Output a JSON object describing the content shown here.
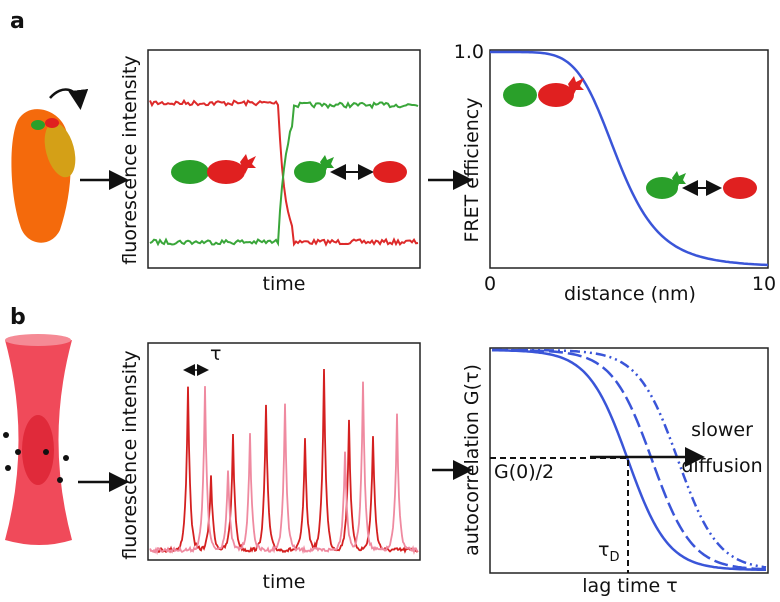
{
  "panel_a": {
    "label": "a",
    "trace_chart": {
      "ylabel": "fluorescence intensity",
      "xlabel": "time"
    },
    "fret_chart": {
      "ylabel": "FRET efficiency",
      "xlabel": "distance (nm)",
      "x_start": "0",
      "x_end": "10",
      "y_top": "1.0"
    }
  },
  "panel_b": {
    "label": "b",
    "burst_chart": {
      "ylabel": "fluorescence intensity",
      "xlabel": "time",
      "lag_symbol": "τ"
    },
    "corr_chart": {
      "ylabel": "autocorrelation G(τ)",
      "xlabel": "lag time τ",
      "arrow_text_1": "slower",
      "arrow_text_2": "diffusion",
      "half_label": "G(0)/2",
      "tau_symbol": "τ",
      "tau_subscript": "D"
    }
  }
}
